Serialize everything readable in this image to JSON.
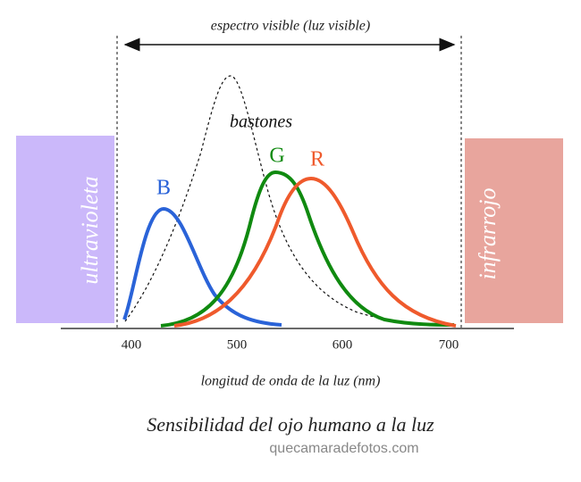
{
  "header": {
    "title": "espectro visible (luz visible)"
  },
  "regions": {
    "left": "ultravioleta",
    "right": "infrarrojo"
  },
  "curves": {
    "rods": "bastones",
    "blue": "B",
    "green": "G",
    "red": "R"
  },
  "axis": {
    "title": "longitud de onda de la luz (nm)",
    "ticks": [
      "400",
      "500",
      "600",
      "700"
    ]
  },
  "caption": {
    "title": "Sensibilidad del ojo humano a la luz",
    "source": "quecamaradefotos.com"
  }
}
